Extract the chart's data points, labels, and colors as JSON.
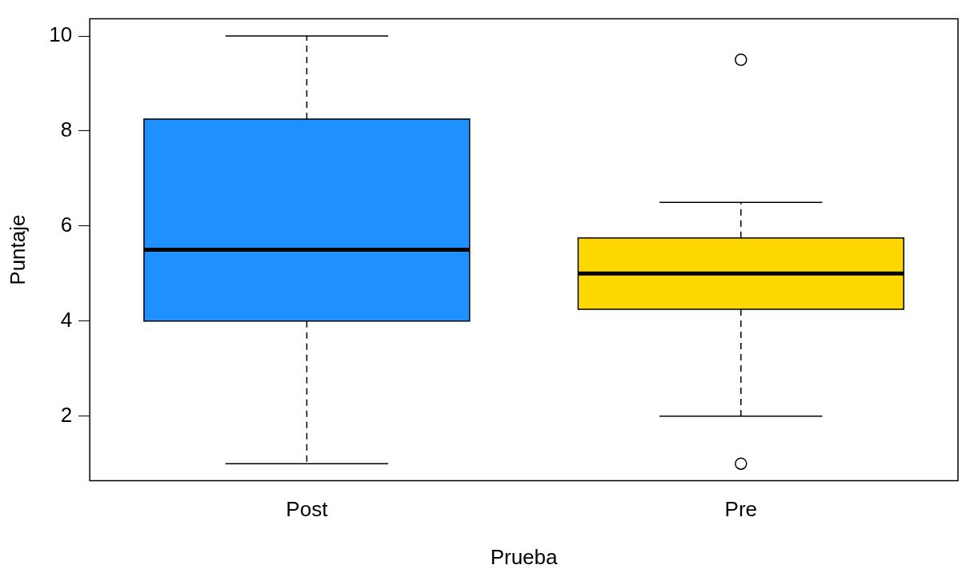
{
  "chart_data": {
    "type": "box",
    "xlabel": "Prueba",
    "ylabel": "Puntaje",
    "categories": [
      "Post",
      "Pre"
    ],
    "colors": [
      "#1e90ff",
      "#ffd700"
    ],
    "boxes": [
      {
        "low": 1,
        "q1": 4,
        "median": 5.5,
        "q3": 8.25,
        "high": 10
      },
      {
        "low": 2,
        "q1": 4.25,
        "median": 5,
        "q3": 5.75,
        "high": 6.5,
        "outliers": [
          9.5,
          1
        ]
      }
    ],
    "ylim": [
      0.64,
      10.36
    ],
    "yticks": [
      2,
      4,
      6,
      8,
      10
    ],
    "grid": false,
    "legend": false
  }
}
